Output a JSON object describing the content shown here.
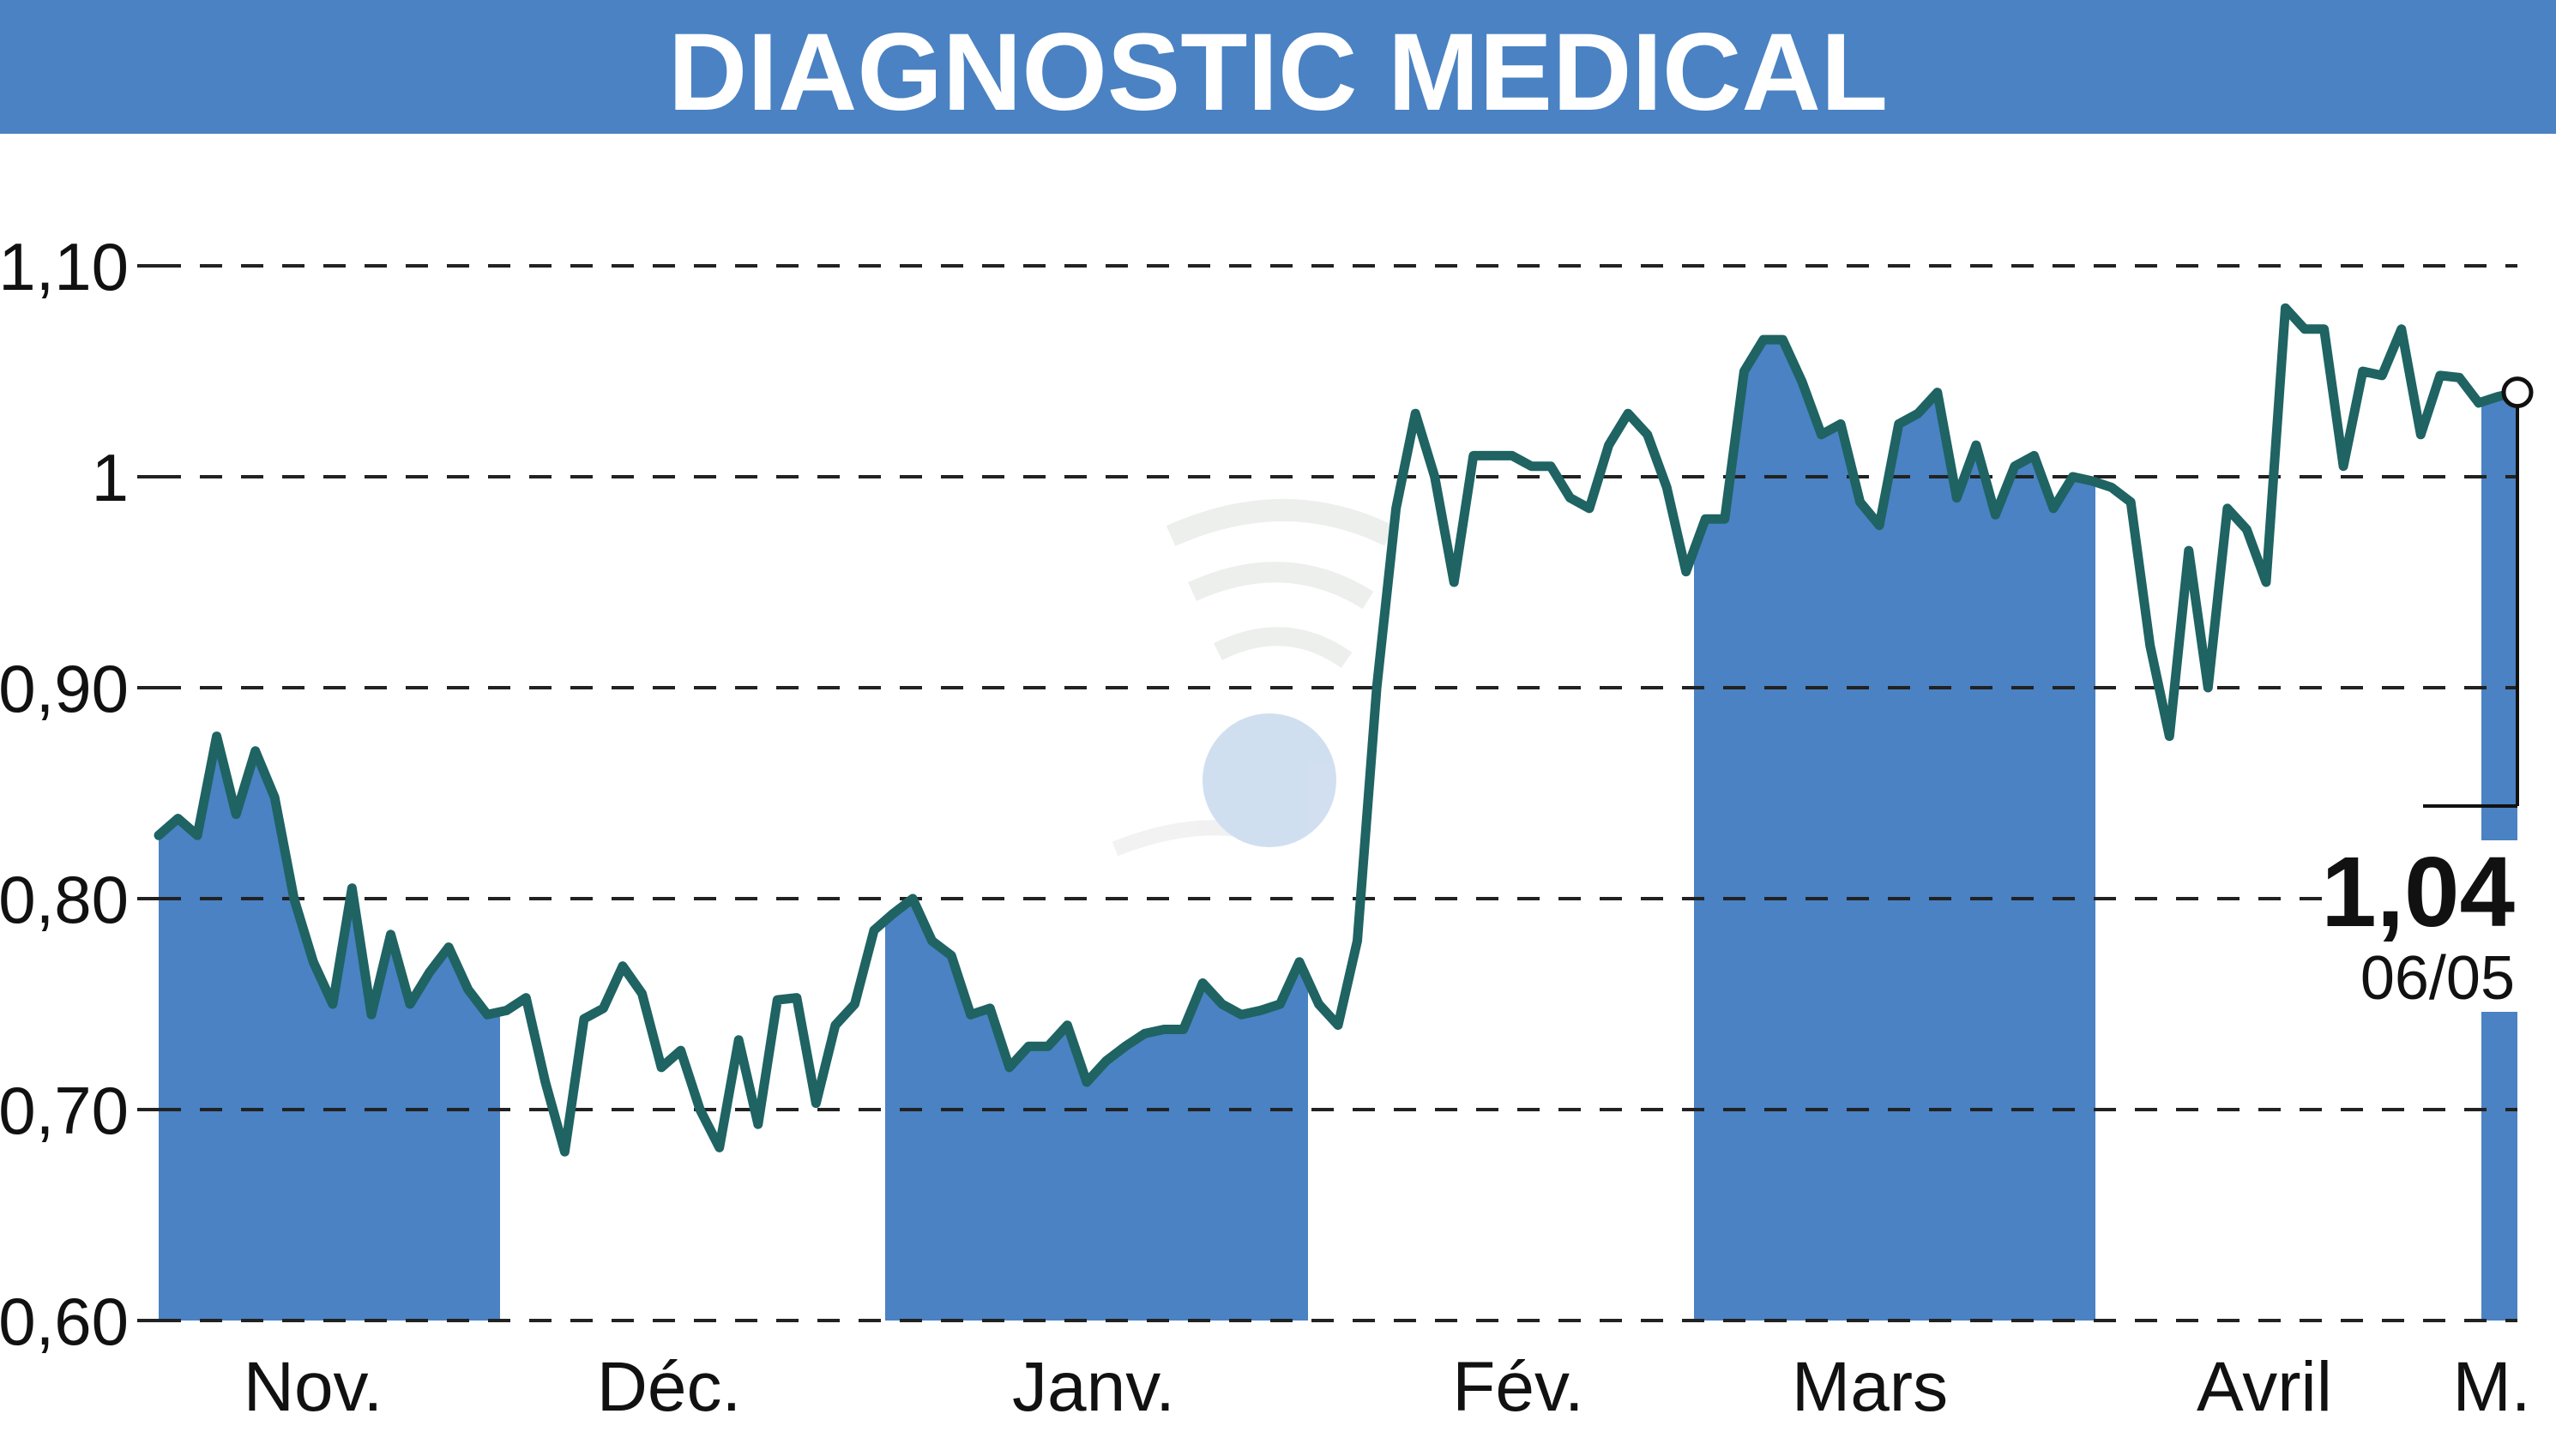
{
  "chart_data": {
    "type": "line",
    "title": "DIAGNOSTIC MEDICAL",
    "xlabel": "",
    "ylabel": "",
    "ylim": [
      0.6,
      1.1
    ],
    "y_ticks": [
      {
        "value": 0.6,
        "label": "0,60"
      },
      {
        "value": 0.7,
        "label": "0,70"
      },
      {
        "value": 0.8,
        "label": "0,80"
      },
      {
        "value": 0.9,
        "label": "0,90"
      },
      {
        "value": 1.0,
        "label": "1"
      },
      {
        "value": 1.1,
        "label": "1,10"
      }
    ],
    "grid": true,
    "months": [
      "Nov.",
      "Déc.",
      "Janv.",
      "Fév.",
      "Mars",
      "Avril",
      "M."
    ],
    "month_bands": [
      true,
      false,
      true,
      false,
      true,
      false,
      true
    ],
    "last_value_label": "1,04",
    "last_date_label": "06/05",
    "series": [
      {
        "values": [
          0.83,
          0.838,
          0.83,
          0.877,
          0.84,
          0.87,
          0.848,
          0.8,
          0.77,
          0.75,
          0.805,
          0.745,
          0.783,
          0.75,
          0.765,
          0.777,
          0.757,
          0.745,
          0.747,
          0.753,
          0.713,
          0.68,
          0.743,
          0.748,
          0.768,
          0.755,
          0.72,
          0.728,
          0.7,
          0.682,
          0.733,
          0.693,
          0.752,
          0.753,
          0.703,
          0.74,
          0.75,
          0.785,
          0.793,
          0.8,
          0.78,
          0.773,
          0.745,
          0.748,
          0.72,
          0.73,
          0.73,
          0.74,
          0.713,
          0.723,
          0.73,
          0.736,
          0.738,
          0.738,
          0.76,
          0.75,
          0.745,
          0.747,
          0.75,
          0.77,
          0.75,
          0.74,
          0.78,
          0.9,
          0.985,
          1.03,
          1.0,
          0.95,
          1.01,
          1.01,
          1.01,
          1.005,
          1.005,
          0.99,
          0.985,
          1.015,
          1.03,
          1.02,
          0.995,
          0.955,
          0.98,
          0.98,
          1.05,
          1.065,
          1.065,
          1.045,
          1.02,
          1.025,
          0.988,
          0.977,
          1.025,
          1.03,
          1.04,
          0.99,
          1.015,
          0.982,
          1.005,
          1.01,
          0.985,
          1.0,
          0.998,
          0.995,
          0.988,
          0.92,
          0.877,
          0.965,
          0.9,
          0.985,
          0.975,
          0.95,
          1.08,
          1.07,
          1.07,
          1.005,
          1.05,
          1.048,
          1.07,
          1.02,
          1.048,
          1.047,
          1.035,
          1.038,
          1.04
        ]
      }
    ]
  },
  "colors": {
    "band": "#4a82c3",
    "title_bar": "#4a82c3",
    "line": "#1f6363",
    "grid": "#222222",
    "text": "#111111"
  }
}
